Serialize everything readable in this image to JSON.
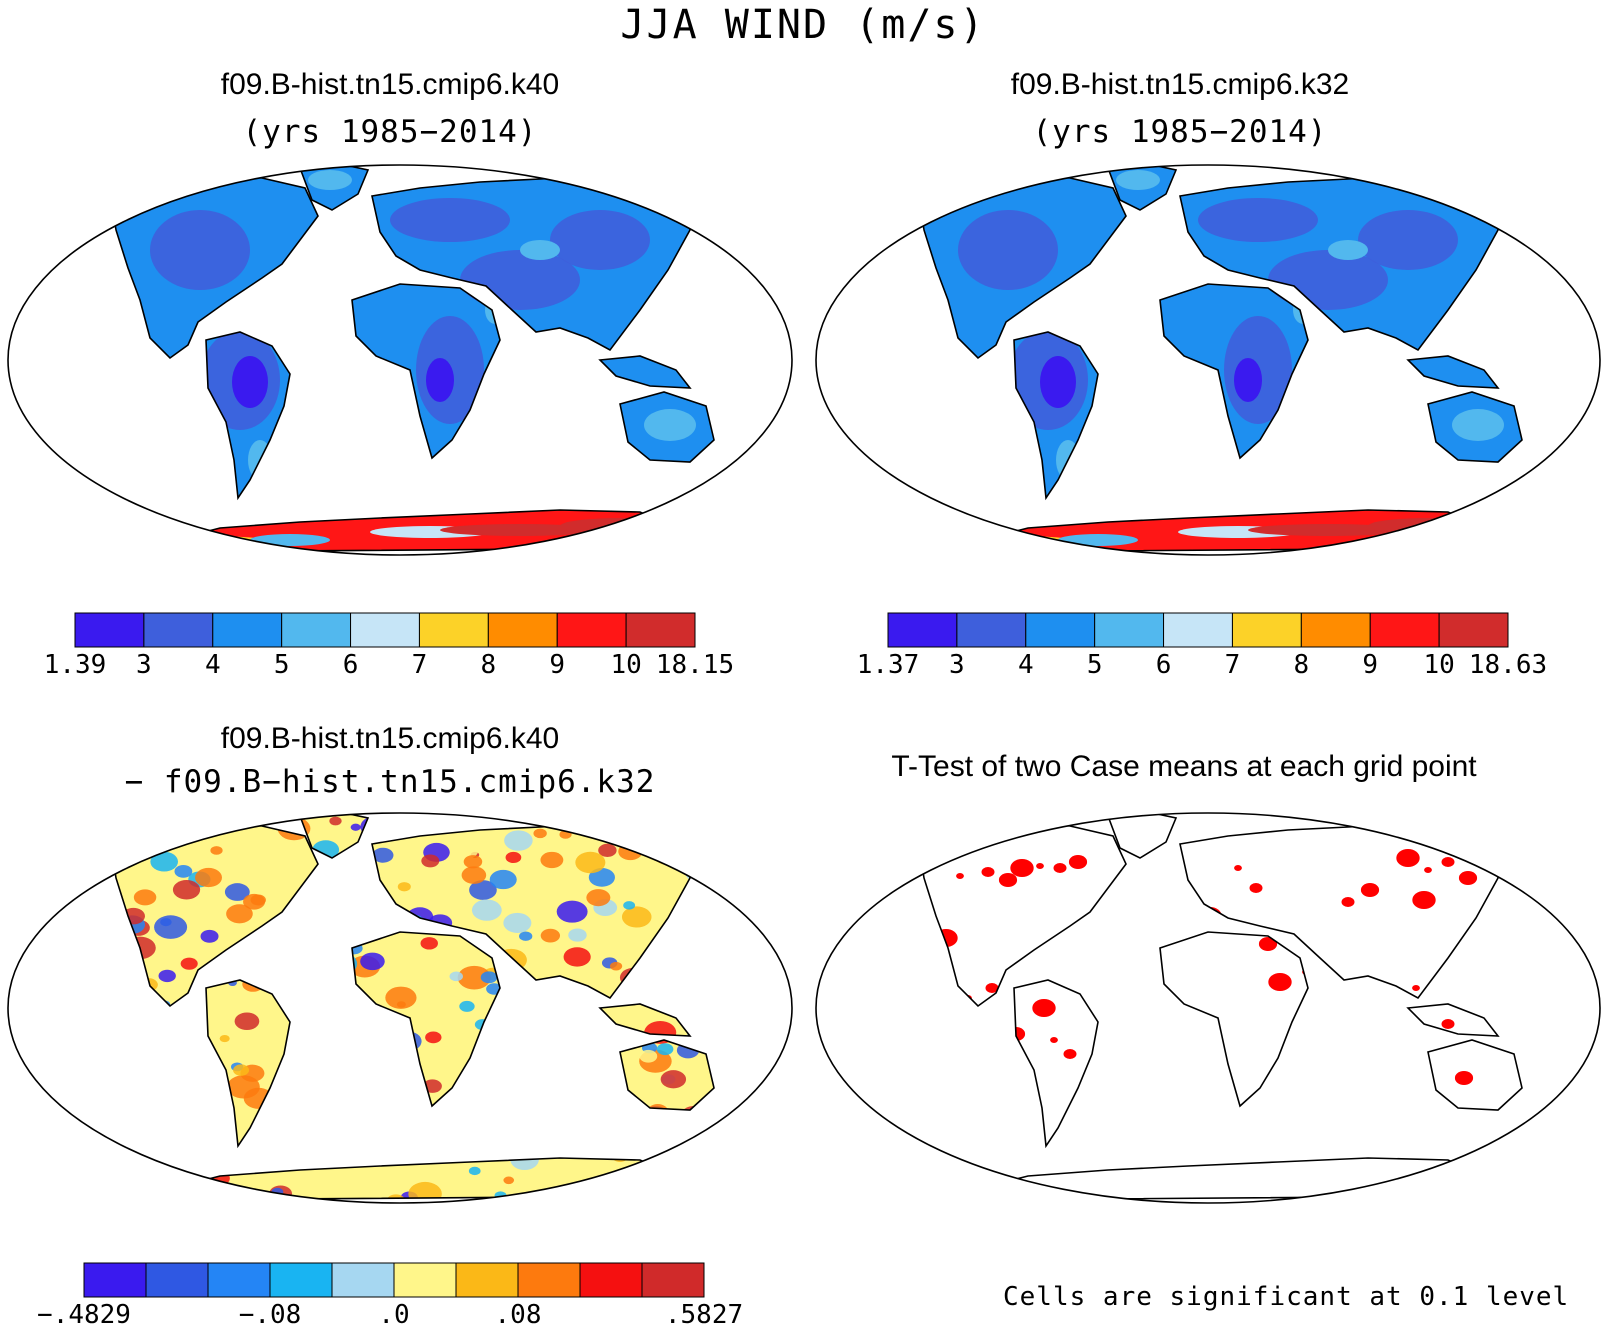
{
  "figure": {
    "title": "JJA WIND (m/s)"
  },
  "panels": [
    {
      "title": "f09.B-hist.tn15.cmip6.k40",
      "subtitle": "(yrs 1985−2014)",
      "field": "mean",
      "colorbar": {
        "labels": [
          "1.39",
          "3",
          "4",
          "5",
          "6",
          "7",
          "8",
          "9",
          "10",
          "18.15"
        ],
        "colors": [
          "#3a1aef",
          "#3e5fdc",
          "#1e8ff0",
          "#52b8ee",
          "#c6e5f7",
          "#fcd228",
          "#ff8c00",
          "#ff1616",
          "#d12c2c"
        ]
      }
    },
    {
      "title": "f09.B-hist.tn15.cmip6.k32",
      "subtitle": "(yrs 1985−2014)",
      "field": "mean",
      "colorbar": {
        "labels": [
          "1.37",
          "3",
          "4",
          "5",
          "6",
          "7",
          "8",
          "9",
          "10",
          "18.63"
        ],
        "colors": [
          "#3a1aef",
          "#3e5fdc",
          "#1e8ff0",
          "#52b8ee",
          "#c6e5f7",
          "#fcd228",
          "#ff8c00",
          "#ff1616",
          "#d12c2c"
        ]
      }
    },
    {
      "title": "f09.B-hist.tn15.cmip6.k40",
      "subtitle": "− f09.B−hist.tn15.cmip6.k32",
      "field": "difference",
      "colorbar": {
        "labels": [
          "−.4829",
          "−.08",
          ".0",
          ".08",
          ".5827"
        ],
        "label_at_boundary": [
          0,
          3,
          5,
          7,
          10
        ],
        "colors": [
          "#3a1aef",
          "#2f58e3",
          "#2485f5",
          "#19b4f2",
          "#a6d7f1",
          "#fff68a",
          "#fbb817",
          "#fd7a0e",
          "#f51010",
          "#d02a2a"
        ]
      }
    },
    {
      "title": "T-Test of two Case means at each grid point",
      "subtitle": "",
      "field": "significance",
      "footnote": "Cells are significant at 0.1 level",
      "significant_color": "#ff0000"
    }
  ]
}
